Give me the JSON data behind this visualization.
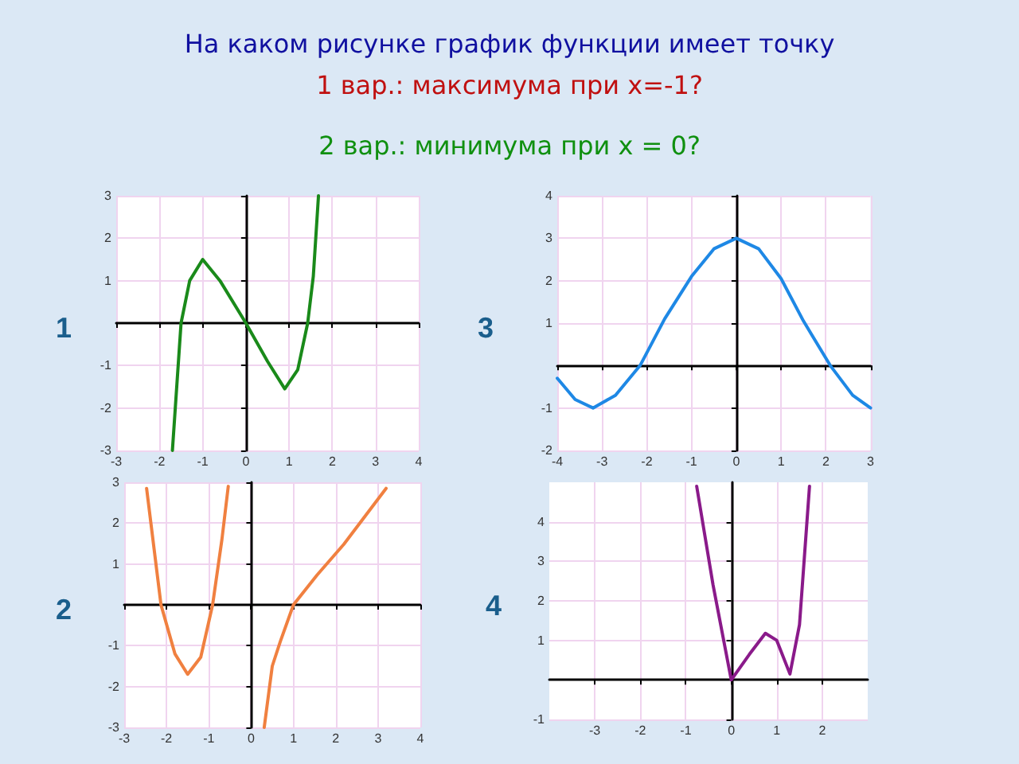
{
  "chart_data": [
    {
      "type": "line",
      "title": "1",
      "annotations": [
        "На каком рисунке график функции имеет точку",
        "1 вар.: максимума при x=-1?",
        "2 вар.: минимума при x = 0?"
      ],
      "x": [
        -1.7,
        -1.5,
        -1.3,
        -1,
        -0.6,
        0,
        0.5,
        0.9,
        1.2,
        1.43,
        1.56,
        1.68
      ],
      "series": [
        {
          "color": "#1a8a1a",
          "values": [
            -3,
            0,
            1.0,
            1.5,
            1.0,
            0,
            -0.9,
            -1.55,
            -1.1,
            0,
            1.1,
            3
          ]
        }
      ],
      "xlim": [
        -3,
        4
      ],
      "xticks": [
        -3,
        -2,
        -1,
        0,
        1,
        2,
        3,
        4
      ],
      "ylim": [
        -3,
        3
      ],
      "yticks": [
        -3,
        -2,
        -1,
        1,
        2,
        3
      ],
      "grid": true,
      "marker": "none"
    },
    {
      "type": "line",
      "title": "3",
      "x": [
        -4,
        -3.6,
        -3.2,
        -2.7,
        -2.15,
        -1.6,
        -1,
        -0.5,
        0,
        0.5,
        1,
        1.5,
        2.1,
        2.6,
        3
      ],
      "series": [
        {
          "color": "#1e88e5",
          "values": [
            -0.3,
            -0.8,
            -1,
            -0.7,
            0,
            1.1,
            2.1,
            2.75,
            3,
            2.75,
            2.05,
            1.05,
            0,
            -0.7,
            -1
          ]
        }
      ],
      "xlim": [
        -4,
        3
      ],
      "xticks": [
        -4,
        -3,
        -2,
        -1,
        0,
        1,
        2,
        3
      ],
      "ylim": [
        -2,
        4
      ],
      "yticks": [
        -2,
        -1,
        1,
        2,
        3,
        4
      ],
      "grid": true,
      "marker": "none"
    },
    {
      "type": "line",
      "title": "2",
      "x": [
        -2.47,
        -2.13,
        -1.8,
        -1.5,
        -1.19,
        -0.91,
        -0.69,
        -0.54,
        0,
        0.31,
        0.5,
        0.69,
        1,
        1.56,
        2.19,
        3.19
      ],
      "series": [
        {
          "color": "#f08040",
          "values": [
            2.85,
            0,
            -1.2,
            -1.7,
            -1.28,
            0,
            1.6,
            2.9,
            null,
            -3,
            -1.5,
            -0.9,
            0,
            0.73,
            1.48,
            2.85
          ]
        }
      ],
      "xlim": [
        -3,
        4
      ],
      "xticks": [
        -3,
        -2,
        -1,
        0,
        1,
        2,
        3,
        4
      ],
      "ylim": [
        -3,
        3
      ],
      "yticks": [
        -3,
        -2,
        -1,
        1,
        2,
        3
      ],
      "grid": true,
      "marker": "none"
    },
    {
      "type": "line",
      "title": "4",
      "x": [
        -0.76,
        -0.4,
        0,
        0.4,
        0.75,
        1,
        1.29,
        1.5,
        1.72
      ],
      "series": [
        {
          "color": "#8a1a8a",
          "values": [
            4.9,
            2.4,
            0,
            0.65,
            1.18,
            1,
            0.15,
            1.4,
            4.9
          ]
        }
      ],
      "xlim": [
        -4,
        3
      ],
      "xticks": [
        -3,
        -2,
        -1,
        0,
        1,
        2
      ],
      "ylim": [
        -1,
        5
      ],
      "yticks": [
        -1,
        1,
        2,
        3,
        4
      ],
      "grid": true,
      "marker": "none"
    }
  ]
}
